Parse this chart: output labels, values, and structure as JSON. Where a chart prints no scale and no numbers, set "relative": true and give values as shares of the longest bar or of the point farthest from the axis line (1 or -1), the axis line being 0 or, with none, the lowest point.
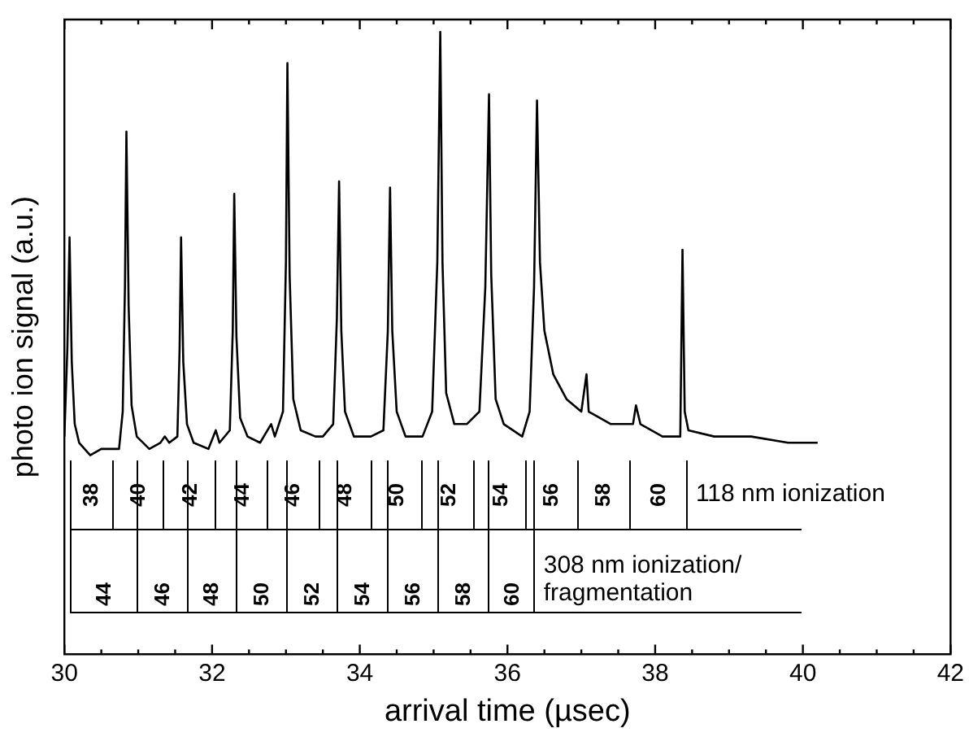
{
  "chart_data": {
    "type": "line",
    "relative": true,
    "xlabel": "arrival time (µsec)",
    "ylabel": "photo ion signal (a.u.)",
    "xlim": [
      30,
      42
    ],
    "xticks": [
      30,
      {
        "value": 30.5,
        "label": null
      },
      {
        "value": 31,
        "label": null
      },
      {
        "value": 31.5,
        "label": null
      },
      32,
      {
        "value": 32.5,
        "label": null
      },
      {
        "value": 33,
        "label": null
      },
      {
        "value": 33.5,
        "label": null
      },
      34,
      {
        "value": 34.5,
        "label": null
      },
      {
        "value": 35,
        "label": null
      },
      {
        "value": 35.5,
        "label": null
      },
      36,
      {
        "value": 36.5,
        "label": null
      },
      {
        "value": 37,
        "label": null
      },
      {
        "value": 37.5,
        "label": null
      },
      38,
      {
        "value": 38.5,
        "label": null
      },
      {
        "value": 39,
        "label": null
      },
      {
        "value": 39.5,
        "label": null
      },
      40,
      {
        "value": 40.5,
        "label": null
      },
      {
        "value": 41,
        "label": null
      },
      {
        "value": 41.5,
        "label": null
      },
      42
    ],
    "legend": false,
    "marker": "none",
    "line_style": "solid",
    "series": [
      {
        "color": "#000000",
        "x": [
          30.0,
          30.04,
          30.07,
          30.1,
          30.14,
          30.2,
          30.35,
          30.5,
          30.55,
          30.74,
          30.79,
          30.82,
          30.84,
          30.87,
          30.91,
          30.98,
          31.15,
          31.3,
          31.36,
          31.42,
          31.53,
          31.56,
          31.58,
          31.61,
          31.66,
          31.75,
          31.95,
          32.05,
          32.1,
          32.24,
          32.28,
          32.3,
          32.33,
          32.38,
          32.48,
          32.65,
          32.8,
          32.85,
          32.96,
          33.0,
          33.02,
          33.05,
          33.1,
          33.2,
          33.4,
          33.5,
          33.64,
          33.69,
          33.72,
          33.75,
          33.8,
          33.92,
          34.15,
          34.32,
          34.38,
          34.41,
          34.44,
          34.5,
          34.62,
          34.85,
          34.98,
          35.05,
          35.09,
          35.12,
          35.17,
          35.28,
          35.45,
          35.62,
          35.7,
          35.75,
          35.78,
          35.84,
          35.95,
          36.2,
          36.3,
          36.36,
          36.4,
          36.44,
          36.5,
          36.62,
          36.8,
          37.0,
          37.07,
          37.1,
          37.4,
          37.7,
          37.74,
          37.8,
          38.1,
          38.34,
          38.37,
          38.4,
          38.45,
          38.8,
          39.3,
          39.8,
          40.2
        ],
        "values": [
          0.35,
          0.49,
          0.67,
          0.47,
          0.37,
          0.34,
          0.32,
          0.33,
          0.33,
          0.33,
          0.39,
          0.59,
          0.84,
          0.56,
          0.4,
          0.35,
          0.33,
          0.34,
          0.35,
          0.34,
          0.35,
          0.49,
          0.67,
          0.47,
          0.37,
          0.34,
          0.33,
          0.36,
          0.34,
          0.36,
          0.52,
          0.74,
          0.51,
          0.38,
          0.35,
          0.34,
          0.37,
          0.35,
          0.39,
          0.63,
          0.95,
          0.61,
          0.41,
          0.36,
          0.35,
          0.35,
          0.37,
          0.54,
          0.76,
          0.52,
          0.39,
          0.35,
          0.35,
          0.36,
          0.52,
          0.75,
          0.52,
          0.39,
          0.35,
          0.35,
          0.39,
          0.63,
          1,
          0.63,
          0.42,
          0.37,
          0.37,
          0.39,
          0.59,
          0.9,
          0.61,
          0.41,
          0.37,
          0.35,
          0.39,
          0.59,
          0.89,
          0.63,
          0.52,
          0.45,
          0.41,
          0.39,
          0.45,
          0.39,
          0.37,
          0.37,
          0.4,
          0.37,
          0.35,
          0.35,
          0.65,
          0.39,
          0.36,
          0.35,
          0.35,
          0.34,
          0.34
        ]
      }
    ],
    "annotations": [
      "38",
      "40",
      "42",
      "44",
      "46",
      "48",
      "50",
      "52",
      "54",
      "56",
      "58",
      "60",
      "118 nm ionization",
      "44",
      "46",
      "48",
      "50",
      "52",
      "54",
      "56",
      "58",
      "60",
      "308 nm ionization/\nfragmentation"
    ]
  }
}
